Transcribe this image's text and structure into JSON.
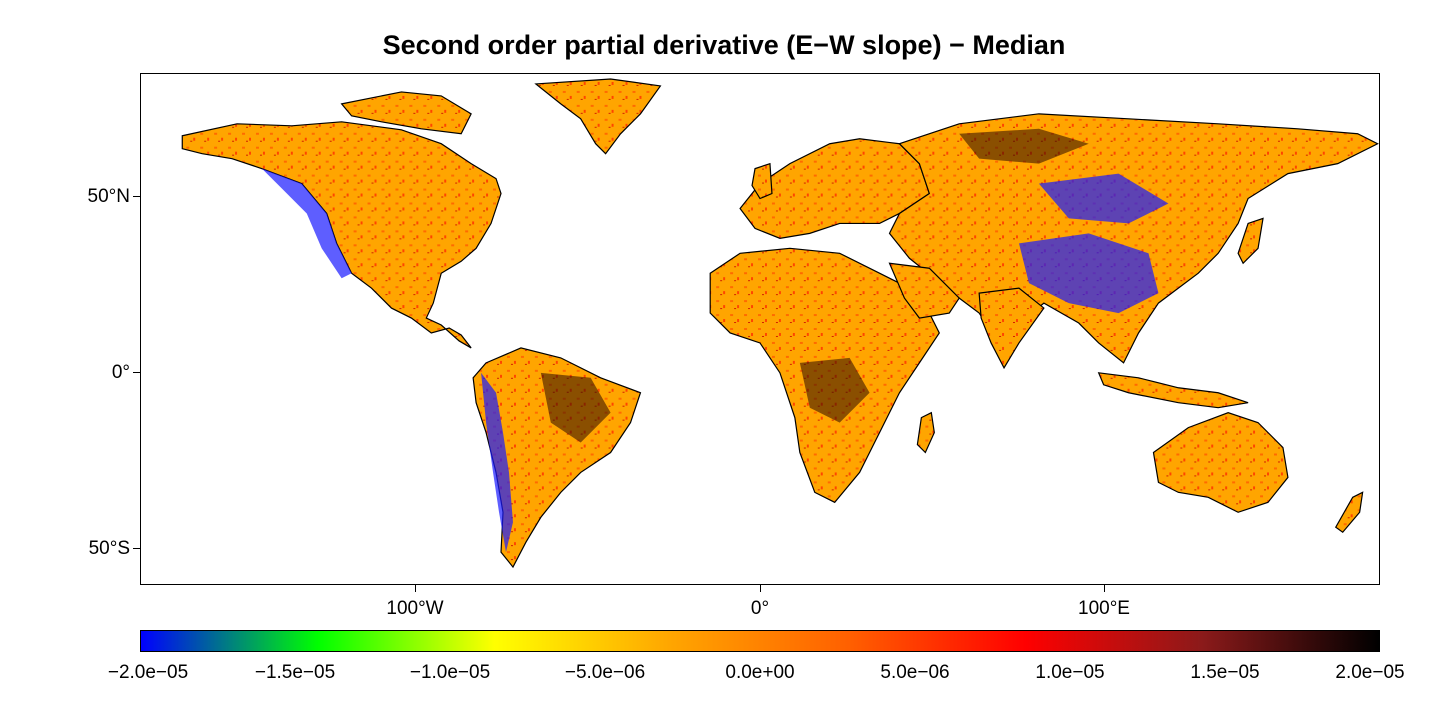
{
  "title": "Second order partial derivative (E−W slope)  − Median",
  "map": {
    "projection": "equirectangular",
    "lon_range": [
      -180,
      180
    ],
    "lat_range": [
      -60,
      85
    ],
    "land_base_color": "#ffa500",
    "coastline_color": "#000000",
    "background_color": "#ffffff"
  },
  "axes": {
    "y_ticks": [
      {
        "lat": 50,
        "label": "50°N"
      },
      {
        "lat": 0,
        "label": "0°"
      },
      {
        "lat": -50,
        "label": "50°S"
      }
    ],
    "x_ticks": [
      {
        "lon": -100,
        "label": "100°W"
      },
      {
        "lon": 0,
        "label": "0°"
      },
      {
        "lon": 100,
        "label": "100°E"
      }
    ]
  },
  "colorbar": {
    "min": -2e-05,
    "max": 2e-05,
    "stops": [
      "#0000ff",
      "#00ff00",
      "#ffff00",
      "#ffa500",
      "#ff6000",
      "#ff0000",
      "#8b1a1a",
      "#000000"
    ],
    "tick_labels": [
      {
        "value": -2e-05,
        "label": "−2.0e−05"
      },
      {
        "value": -1.5e-05,
        "label": "−1.5e−05"
      },
      {
        "value": -1e-05,
        "label": "−1.0e−05"
      },
      {
        "value": -5e-06,
        "label": "−5.0e−06"
      },
      {
        "value": 0.0,
        "label": "0.0e+00"
      },
      {
        "value": 5e-06,
        "label": "5.0e−06"
      },
      {
        "value": 1e-05,
        "label": "1.0e−05"
      },
      {
        "value": 1.5e-05,
        "label": "1.5e−05"
      },
      {
        "value": 2e-05,
        "label": "2.0e−05"
      }
    ]
  }
}
